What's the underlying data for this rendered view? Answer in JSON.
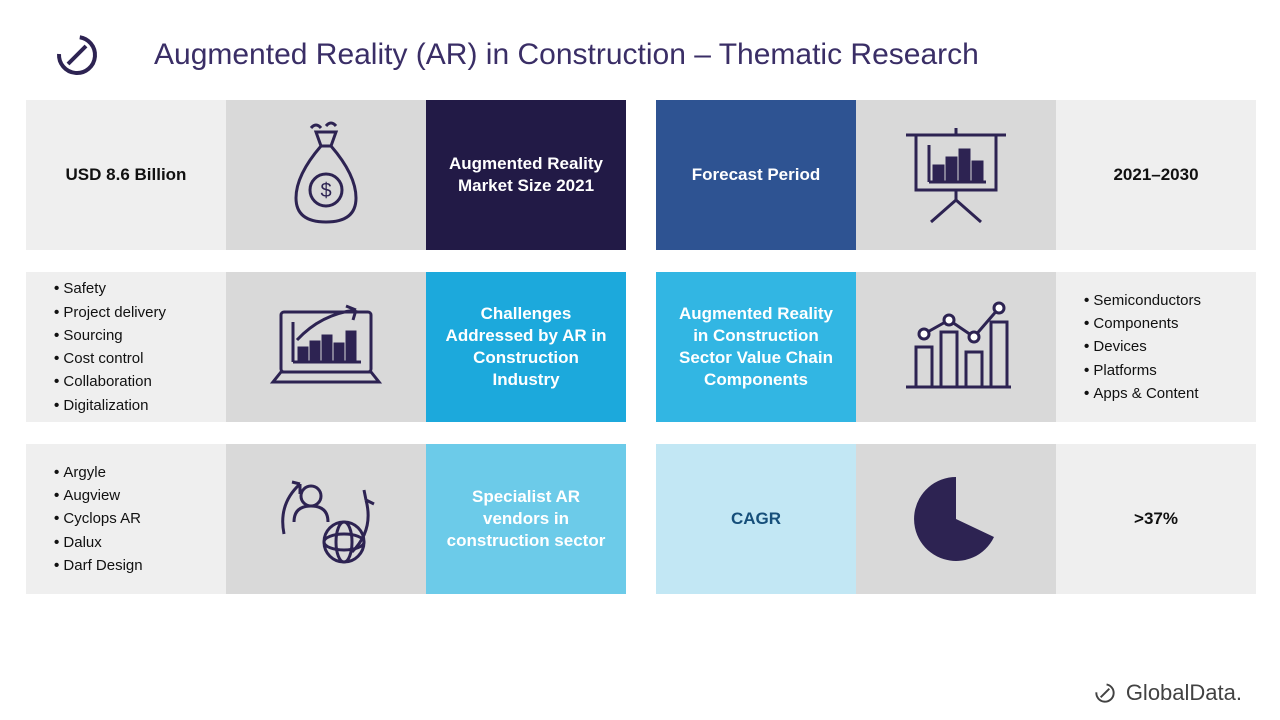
{
  "title": {
    "text": "Augmented Reality (AR) in Construction – Thematic Research",
    "color": "#3a2e66"
  },
  "footer": {
    "brand": "GlobalData."
  },
  "colors": {
    "iconStroke": "#2d2352",
    "lightgray": "#efefef",
    "midgray": "#d9d9d9"
  },
  "rows": [
    {
      "left": {
        "value": "USD 8.6 Billion",
        "label": "Augmented Reality Market Size 2021",
        "label_bg": "#221a46",
        "icon": "money-bag-icon"
      },
      "right": {
        "value": "2021–2030",
        "label": "Forecast Period",
        "label_bg": "#2e5392",
        "icon": "presentation-chart-icon"
      }
    },
    {
      "left": {
        "list": [
          "Safety",
          "Project delivery",
          "Sourcing",
          "Cost control",
          "Collaboration",
          "Digitalization"
        ],
        "label": "Challenges Addressed by AR in Construction Industry",
        "label_bg": "#1ca9dc",
        "icon": "laptop-growth-icon"
      },
      "right": {
        "list": [
          "Semiconductors",
          "Components",
          "Devices",
          "Platforms",
          "Apps & Content"
        ],
        "label": "Augmented Reality in Construction Sector Value Chain Components",
        "label_bg": "#32b6e3",
        "icon": "bar-line-chart-icon"
      }
    },
    {
      "left": {
        "list": [
          "Argyle",
          "Augview",
          "Cyclops AR",
          "Dalux",
          "Darf Design"
        ],
        "label": "Specialist AR vendors in construction sector",
        "label_bg": "#6ccbe9",
        "icon": "user-globe-cycle-icon"
      },
      "right": {
        "value": ">37%",
        "label": "CAGR",
        "label_bg": "#c2e7f4",
        "label_color": "#164f7a",
        "icon": "pie-slice-icon"
      }
    }
  ]
}
